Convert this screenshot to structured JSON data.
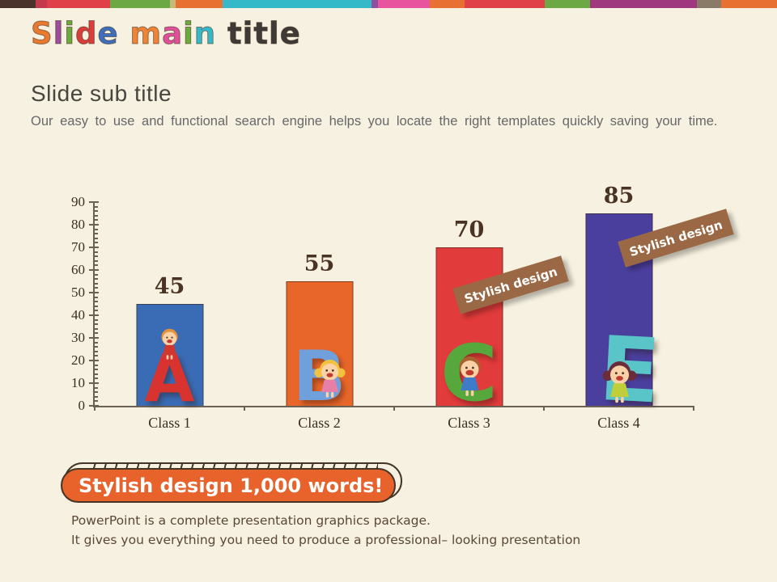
{
  "header": {
    "title_text": "Slide main title",
    "title_letters": [
      {
        "ch": "S",
        "color": "#E8792F"
      },
      {
        "ch": "l",
        "color": "#9D4E9E"
      },
      {
        "ch": "i",
        "color": "#6CA93F"
      },
      {
        "ch": "d",
        "color": "#D93E3B"
      },
      {
        "ch": "e",
        "color": "#3E6FBE"
      },
      {
        "ch": " ",
        "color": ""
      },
      {
        "ch": "m",
        "color": "#EE8438"
      },
      {
        "ch": "a",
        "color": "#E0519C"
      },
      {
        "ch": "i",
        "color": "#6CA93F"
      },
      {
        "ch": "n",
        "color": "#35B9C9"
      },
      {
        "ch": " ",
        "color": ""
      },
      {
        "ch": "t",
        "color": "#3E3A37"
      },
      {
        "ch": "i",
        "color": "#3E3A37"
      },
      {
        "ch": "t",
        "color": "#3E3A37"
      },
      {
        "ch": "l",
        "color": "#3E3A37"
      },
      {
        "ch": "e",
        "color": "#3E3A37"
      }
    ]
  },
  "top_strip": {
    "segments": [
      {
        "color": "#4A332A",
        "width_pct": 4.6
      },
      {
        "color": "#C23A4B",
        "width_pct": 1.4
      },
      {
        "color": "#E04048",
        "width_pct": 8.2
      },
      {
        "color": "#6CA844",
        "width_pct": 7.7
      },
      {
        "color": "#C8B878",
        "width_pct": 0.7
      },
      {
        "color": "#E87030",
        "width_pct": 6.0
      },
      {
        "color": "#35B8C8",
        "width_pct": 19.2
      },
      {
        "color": "#8E4F9E",
        "width_pct": 0.9
      },
      {
        "color": "#E8559E",
        "width_pct": 6.6
      },
      {
        "color": "#E87030",
        "width_pct": 4.5
      },
      {
        "color": "#E04048",
        "width_pct": 10.3
      },
      {
        "color": "#6CA844",
        "width_pct": 5.8
      },
      {
        "color": "#A03880",
        "width_pct": 13.8
      },
      {
        "color": "#8A7A68",
        "width_pct": 3.1
      },
      {
        "color": "#E87030",
        "width_pct": 7.2
      }
    ]
  },
  "section": {
    "subtitle": "Slide sub title",
    "body": "Our easy to use and functional search engine helps you locate the right templates quickly saving your time."
  },
  "chart_data": {
    "type": "bar",
    "title": "",
    "categories": [
      "Class 1",
      "Class 2",
      "Class 3",
      "Class 4"
    ],
    "values": [
      45,
      55,
      70,
      85
    ],
    "bar_colors": [
      "#3A6CB5",
      "#E8662A",
      "#E23B3B",
      "#4B3F9E"
    ],
    "value_label_color": "#4A3323",
    "ylim": [
      0,
      90
    ],
    "ytick_step": 10,
    "minor_tick_step": 2,
    "yticks": [
      0,
      10,
      20,
      30,
      40,
      50,
      60,
      70,
      80,
      90
    ],
    "xlabel": "",
    "ylabel": "",
    "legend": "none",
    "grid": false,
    "decorations": {
      "letters": [
        "A",
        "B",
        "C",
        "E"
      ],
      "letter_colors": [
        "#D8332E",
        "#6FA0DC",
        "#57A83C",
        "#59C5C8"
      ]
    }
  },
  "ribbons": [
    {
      "label": "Stylish design",
      "color": "#9A6845"
    },
    {
      "label": "Stylish design",
      "color": "#9A6845"
    }
  ],
  "banner": {
    "label": "Stylish design 1,000 words!",
    "color": "#E8622C"
  },
  "footer": {
    "line1": "PowerPoint is a complete presentation graphics package.",
    "line2": "It gives you everything you need to produce a professional– looking presentation"
  }
}
